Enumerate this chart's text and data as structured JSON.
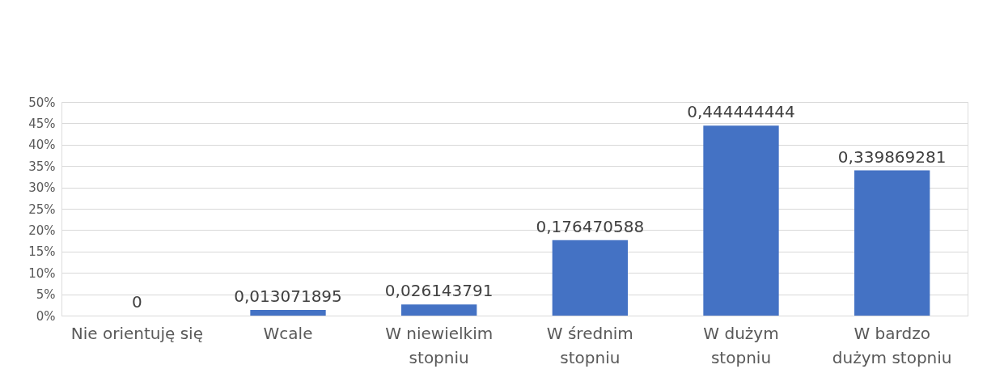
{
  "chart_data": {
    "type": "bar",
    "categories": [
      "Nie orientuję się",
      "Wcale",
      "W niewielkim\nstopniu",
      "W średnim\nstopniu",
      "W dużym\nstopniu",
      "W bardzo\ndużym stopniu"
    ],
    "values": [
      0,
      0.013071895,
      0.026143791,
      0.176470588,
      0.444444444,
      0.339869281
    ],
    "value_labels": [
      "0",
      "0,013071895",
      "0,026143791",
      "0,176470588",
      "0,444444444",
      "0,339869281"
    ],
    "color": "#4472c4",
    "ylim": [
      0,
      0.5
    ],
    "yticks": [
      {
        "value": 0,
        "label": "0%"
      },
      {
        "value": 0.05,
        "label": "5%"
      },
      {
        "value": 0.1,
        "label": "10%"
      },
      {
        "value": 0.15,
        "label": "15%"
      },
      {
        "value": 0.2,
        "label": "20%"
      },
      {
        "value": 0.25,
        "label": "25%"
      },
      {
        "value": 0.3,
        "label": "30%"
      },
      {
        "value": 0.35,
        "label": "35%"
      },
      {
        "value": 0.4,
        "label": "40%"
      },
      {
        "value": 0.45,
        "label": "45%"
      },
      {
        "value": 0.5,
        "label": "50%"
      }
    ],
    "grid": "y"
  }
}
